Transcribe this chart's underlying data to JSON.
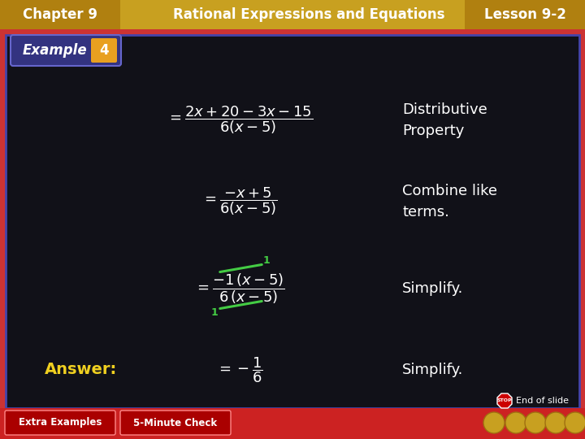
{
  "bg_color": "#111118",
  "border_color": "#cc3333",
  "header_bg": "#c8a020",
  "header_text_color": "#ffffff",
  "header_left": "Chapter 9",
  "header_center": "Rational Expressions and Equations",
  "header_right": "Lesson 9-2",
  "example_label": "Example",
  "example_num": "4",
  "example_bg": "#3a3a8a",
  "example_num_bg": "#e8a020",
  "footer_bg": "#cc2222",
  "footer_text": [
    "Extra Examples",
    "5-Minute Check"
  ],
  "answer_label": "Answer:",
  "answer_color": "#f0d020",
  "main_text_color": "#ffffff",
  "green_color": "#44cc44",
  "line1_annot": "Distributive\nProperty",
  "line2_annot": "Combine like\nterms.",
  "line3_annot": "Simplify.",
  "line4_annot": "Simplify.",
  "inner_border_color": "#4444aa",
  "nav_color": "#c8a020"
}
